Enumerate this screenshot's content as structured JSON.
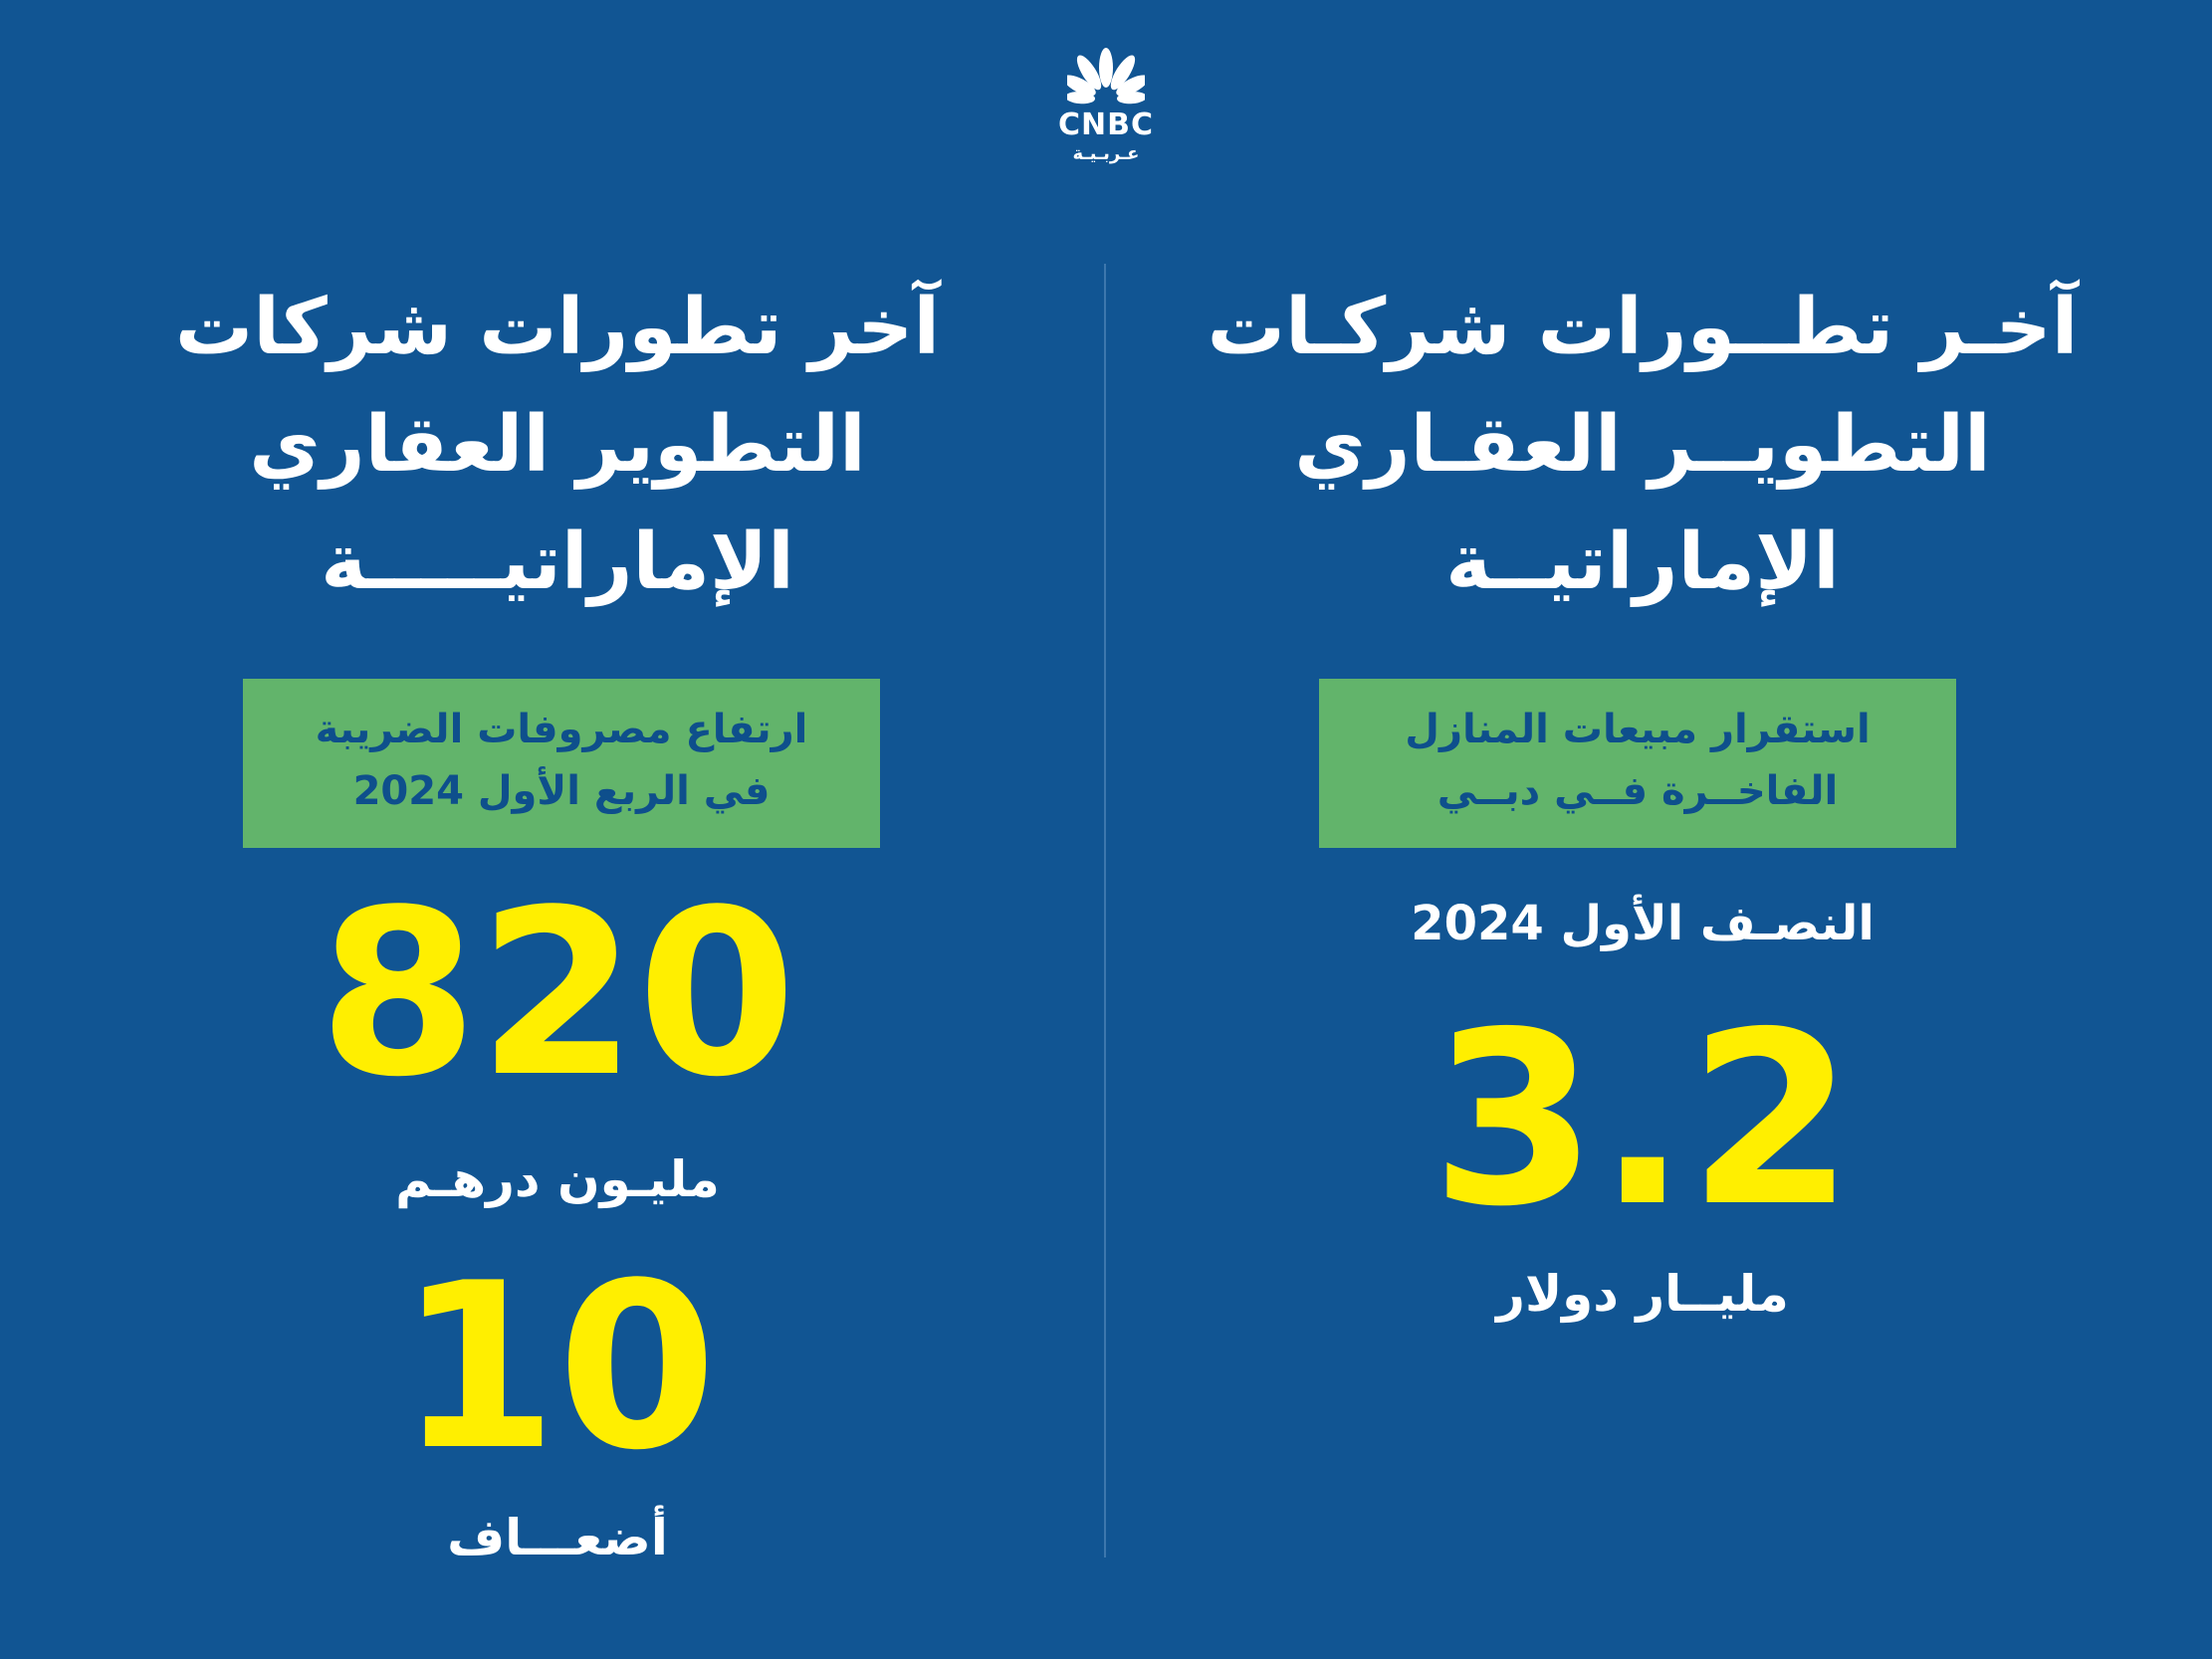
{
  "logo": {
    "name": "CNBC",
    "subtitle": "عـربـيـة",
    "icon": "peacock-icon"
  },
  "colors": {
    "background": "#115593",
    "badge": "#62b46b",
    "highlight": "#ffef00",
    "text": "#ffffff",
    "badge_text": "#0e4f8c"
  },
  "left_panel": {
    "title_lines": [
      "آخر تطورات شركات",
      "التطوير العقاري",
      "الإماراتيـــــة"
    ],
    "badge_lines": [
      "ارتفاع مصروفات الضريبة",
      "في الربع الأول 2024"
    ],
    "stat1_value": "820",
    "stat1_unit": "مليـون درهـم",
    "stat2_value": "10",
    "stat2_unit": "أضعـــاف"
  },
  "right_panel": {
    "title_lines": [
      "آخـر تطــورات شركـات",
      "التطويــر العقـاري",
      "الإماراتيــة"
    ],
    "badge_lines": [
      "استقرار مبيعات المنازل",
      "الفاخــرة فــي دبــي"
    ],
    "period": "النصـف الأول 2024",
    "stat_value": "3.2",
    "stat_unit": "مليــار دولار"
  }
}
